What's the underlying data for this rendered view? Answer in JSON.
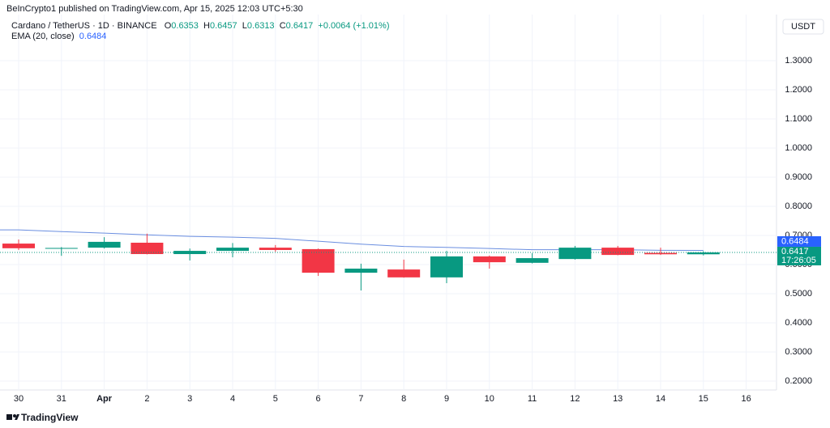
{
  "header": {
    "publisher": "BeInCrypto1 published on TradingView.com, Apr 15, 2025 12:03 UTC+5:30"
  },
  "footer": {
    "brand": "TradingView"
  },
  "chart_data": {
    "type": "candlestick",
    "title": "Cardano / TetherUS · 1D · BINANCE",
    "ohlc_labels": [
      "O",
      "H",
      "L",
      "C"
    ],
    "change": "+0.0064 (+1.01%)",
    "currency": "USDT",
    "countdown": "17:26:05",
    "categories": [
      "30",
      "31",
      "Apr",
      "2",
      "3",
      "4",
      "5",
      "6",
      "7",
      "8",
      "9",
      "10",
      "11",
      "12",
      "13",
      "14",
      "15",
      "16"
    ],
    "open": [
      0.672,
      0.655,
      0.658,
      0.675,
      0.636,
      0.647,
      0.658,
      0.653,
      0.572,
      0.583,
      0.556,
      0.628,
      0.606,
      0.619,
      0.658,
      0.64,
      0.6353,
      null
    ],
    "high": [
      0.686,
      0.66,
      0.694,
      0.706,
      0.655,
      0.674,
      0.667,
      0.655,
      0.603,
      0.617,
      0.647,
      0.631,
      0.639,
      0.664,
      0.664,
      0.658,
      0.6457,
      null
    ],
    "low": [
      0.65,
      0.63,
      0.655,
      0.635,
      0.614,
      0.625,
      0.644,
      0.561,
      0.511,
      0.555,
      0.536,
      0.586,
      0.604,
      0.617,
      0.632,
      0.633,
      0.6313,
      null
    ],
    "close": [
      0.656,
      0.657,
      0.678,
      0.636,
      0.647,
      0.658,
      0.65,
      0.572,
      0.586,
      0.556,
      0.628,
      0.608,
      0.622,
      0.658,
      0.633,
      0.6353,
      0.6417,
      null
    ],
    "up_color": "#089981",
    "down_color": "#f23645",
    "ema": {
      "name": "EMA (20, close)",
      "color": "#6a8ee0",
      "values": [
        0.719,
        0.713,
        0.708,
        0.702,
        0.697,
        0.694,
        0.69,
        0.68,
        0.67,
        0.662,
        0.659,
        0.655,
        0.651,
        0.651,
        0.651,
        0.649,
        0.6484,
        null
      ]
    },
    "ylim": [
      0.1694,
      1.4583
    ],
    "yticks": [
      {
        "value": 0.2,
        "label": "0.2000"
      },
      {
        "value": 0.3,
        "label": "0.3000"
      },
      {
        "value": 0.4,
        "label": "0.4000"
      },
      {
        "value": 0.5,
        "label": "0.5000"
      },
      {
        "value": 0.6,
        "label": "0.6000"
      },
      {
        "value": 0.7,
        "label": "0.7000"
      },
      {
        "value": 0.8,
        "label": "0.8000"
      },
      {
        "value": 0.9,
        "label": "0.9000"
      },
      {
        "value": 1.0,
        "label": "1.0000"
      },
      {
        "value": 1.1,
        "label": "1.1000"
      },
      {
        "value": 1.2,
        "label": "1.2000"
      },
      {
        "value": 1.3,
        "label": "1.3000"
      }
    ],
    "grid": true
  }
}
